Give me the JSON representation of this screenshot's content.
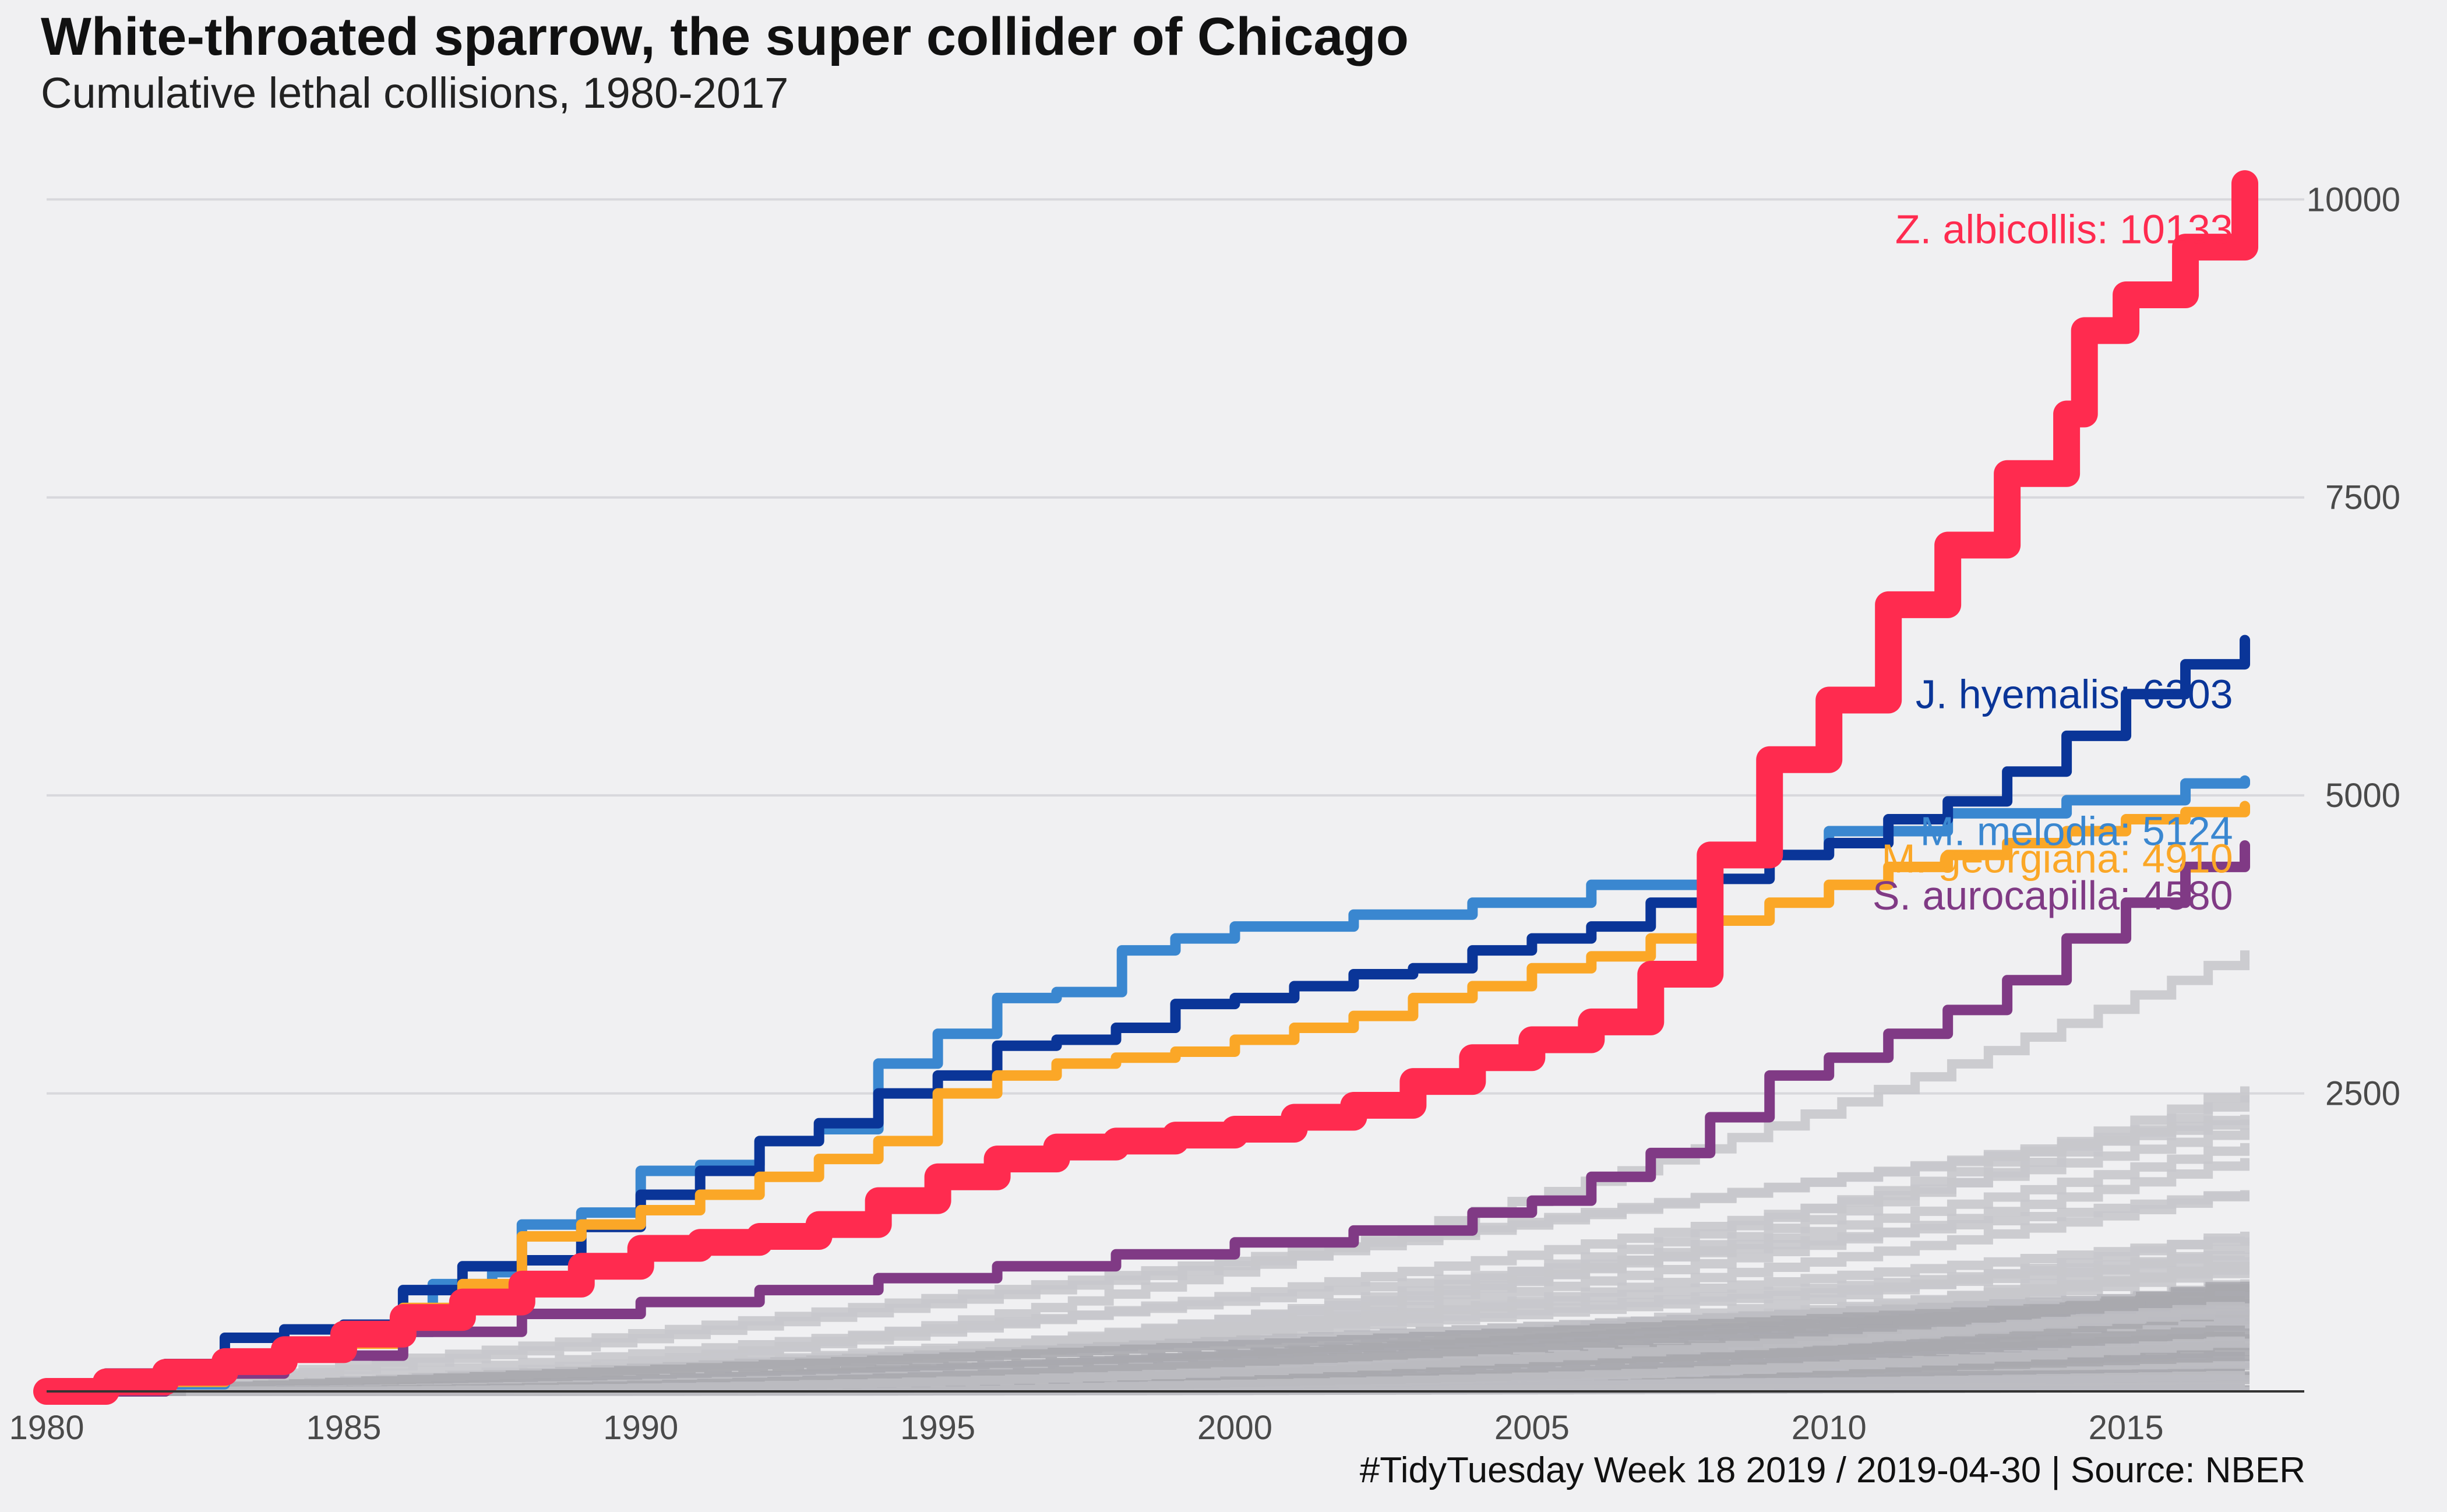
{
  "title": "White-throated sparrow, the super collider of Chicago",
  "subtitle": "Cumulative lethal collisions, 1980-2017",
  "caption": "#TidyTuesday Week 18 2019 / 2019-04-30 | Source: NBER",
  "chart_data": {
    "type": "line",
    "title": "White-throated sparrow, the super collider of Chicago",
    "subtitle": "Cumulative lethal collisions, 1980-2017",
    "xlabel": "",
    "ylabel": "",
    "xlim": [
      1980,
      2018
    ],
    "ylim": [
      0,
      10500
    ],
    "x_ticks": [
      1980,
      1985,
      1990,
      1995,
      2000,
      2005,
      2010,
      2015
    ],
    "y_ticks": [
      2500,
      5000,
      7500,
      10000
    ],
    "y_axis_position": "right",
    "grid": "horizontal",
    "highlight_series": [
      {
        "label": "M. melodia: 5124",
        "color": "#3a87d0",
        "points": [
          [
            1980,
            0
          ],
          [
            1982,
            60
          ],
          [
            1983,
            160
          ],
          [
            1984,
            380
          ],
          [
            1985,
            470
          ],
          [
            1986,
            500
          ],
          [
            1986.5,
            900
          ],
          [
            1987.5,
            1000
          ],
          [
            1988,
            1400
          ],
          [
            1989,
            1500
          ],
          [
            1990,
            1850
          ],
          [
            1991,
            1900
          ],
          [
            1992,
            2100
          ],
          [
            1993,
            2200
          ],
          [
            1994,
            2400
          ],
          [
            1994,
            2750
          ],
          [
            1995,
            3000
          ],
          [
            1996,
            3300
          ],
          [
            1997,
            3350
          ],
          [
            1998,
            3350
          ],
          [
            1998.1,
            3700
          ],
          [
            1999,
            3800
          ],
          [
            2000,
            3900
          ],
          [
            2002,
            4000
          ],
          [
            2004,
            4100
          ],
          [
            2006,
            4250
          ],
          [
            2008,
            4500
          ],
          [
            2010,
            4700
          ],
          [
            2012,
            4850
          ],
          [
            2014,
            4960
          ],
          [
            2016,
            5100
          ],
          [
            2017,
            5124
          ]
        ]
      },
      {
        "label": "J. hyemalis: 6303",
        "color": "#0a3598",
        "points": [
          [
            1980,
            50
          ],
          [
            1981,
            150
          ],
          [
            1982,
            230
          ],
          [
            1983,
            450
          ],
          [
            1984,
            520
          ],
          [
            1985,
            560
          ],
          [
            1986,
            850
          ],
          [
            1987,
            1050
          ],
          [
            1988,
            1100
          ],
          [
            1989,
            1380
          ],
          [
            1990,
            1650
          ],
          [
            1991,
            1850
          ],
          [
            1992,
            2100
          ],
          [
            1993,
            2250
          ],
          [
            1994,
            2500
          ],
          [
            1995,
            2650
          ],
          [
            1996,
            2900
          ],
          [
            1997,
            2950
          ],
          [
            1998,
            3050
          ],
          [
            1999,
            3250
          ],
          [
            2000,
            3300
          ],
          [
            2001,
            3400
          ],
          [
            2002,
            3500
          ],
          [
            2003,
            3550
          ],
          [
            2004,
            3700
          ],
          [
            2005,
            3800
          ],
          [
            2006,
            3900
          ],
          [
            2007,
            4100
          ],
          [
            2008,
            4300
          ],
          [
            2009,
            4500
          ],
          [
            2010,
            4600
          ],
          [
            2011,
            4800
          ],
          [
            2012,
            4950
          ],
          [
            2013,
            5200
          ],
          [
            2014,
            5500
          ],
          [
            2015,
            5850
          ],
          [
            2016,
            6100
          ],
          [
            2017,
            6303
          ]
        ]
      },
      {
        "label": "M. georgiana: 4910",
        "color": "#fba727",
        "points": [
          [
            1980,
            0
          ],
          [
            1982,
            80
          ],
          [
            1983,
            150
          ],
          [
            1984,
            330
          ],
          [
            1985,
            400
          ],
          [
            1986,
            700
          ],
          [
            1987,
            900
          ],
          [
            1988,
            1300
          ],
          [
            1989,
            1400
          ],
          [
            1990,
            1520
          ],
          [
            1991,
            1650
          ],
          [
            1992,
            1800
          ],
          [
            1993,
            1950
          ],
          [
            1994,
            2100
          ],
          [
            1995,
            2500
          ],
          [
            1996,
            2650
          ],
          [
            1997,
            2750
          ],
          [
            1998,
            2800
          ],
          [
            1999,
            2850
          ],
          [
            2000,
            2950
          ],
          [
            2001,
            3050
          ],
          [
            2002,
            3150
          ],
          [
            2003,
            3300
          ],
          [
            2004,
            3400
          ],
          [
            2005,
            3550
          ],
          [
            2006,
            3650
          ],
          [
            2007,
            3800
          ],
          [
            2008,
            3950
          ],
          [
            2009,
            4100
          ],
          [
            2010,
            4250
          ],
          [
            2011,
            4400
          ],
          [
            2012,
            4500
          ],
          [
            2013,
            4600
          ],
          [
            2014,
            4700
          ],
          [
            2015,
            4800
          ],
          [
            2016,
            4860
          ],
          [
            2017,
            4910
          ]
        ]
      },
      {
        "label": "S. aurocapilla: 4580",
        "color": "#803a85",
        "points": [
          [
            1980,
            0
          ],
          [
            1982,
            150
          ],
          [
            1984,
            300
          ],
          [
            1986,
            500
          ],
          [
            1988,
            650
          ],
          [
            1990,
            750
          ],
          [
            1992,
            850
          ],
          [
            1994,
            950
          ],
          [
            1996,
            1050
          ],
          [
            1998,
            1150
          ],
          [
            2000,
            1250
          ],
          [
            2002,
            1350
          ],
          [
            2004,
            1500
          ],
          [
            2005,
            1600
          ],
          [
            2006,
            1800
          ],
          [
            2007,
            2000
          ],
          [
            2008,
            2300
          ],
          [
            2009,
            2650
          ],
          [
            2010,
            2800
          ],
          [
            2011,
            3000
          ],
          [
            2012,
            3200
          ],
          [
            2013,
            3450
          ],
          [
            2014,
            3800
          ],
          [
            2015,
            4100
          ],
          [
            2016,
            4400
          ],
          [
            2017,
            4580
          ]
        ]
      },
      {
        "label": "Z. albicollis: 10133",
        "color": "#ff2b4f",
        "points": [
          [
            1980,
            0
          ],
          [
            1981,
            80
          ],
          [
            1982,
            160
          ],
          [
            1983,
            250
          ],
          [
            1984,
            350
          ],
          [
            1985,
            480
          ],
          [
            1986,
            620
          ],
          [
            1987,
            750
          ],
          [
            1988,
            900
          ],
          [
            1989,
            1050
          ],
          [
            1990,
            1200
          ],
          [
            1991,
            1250
          ],
          [
            1992,
            1300
          ],
          [
            1993,
            1400
          ],
          [
            1994,
            1600
          ],
          [
            1995,
            1800
          ],
          [
            1996,
            1950
          ],
          [
            1997,
            2050
          ],
          [
            1998,
            2100
          ],
          [
            1999,
            2150
          ],
          [
            2000,
            2200
          ],
          [
            2001,
            2300
          ],
          [
            2002,
            2400
          ],
          [
            2003,
            2600
          ],
          [
            2004,
            2800
          ],
          [
            2005,
            2950
          ],
          [
            2006,
            3100
          ],
          [
            2007,
            3500
          ],
          [
            2008,
            4500
          ],
          [
            2009,
            5300
          ],
          [
            2010,
            5800
          ],
          [
            2011,
            6600
          ],
          [
            2012,
            7100
          ],
          [
            2013,
            7700
          ],
          [
            2014,
            8200
          ],
          [
            2014.3,
            8900
          ],
          [
            2015,
            9200
          ],
          [
            2016,
            9600
          ],
          [
            2017,
            10133
          ]
        ]
      }
    ]
  }
}
